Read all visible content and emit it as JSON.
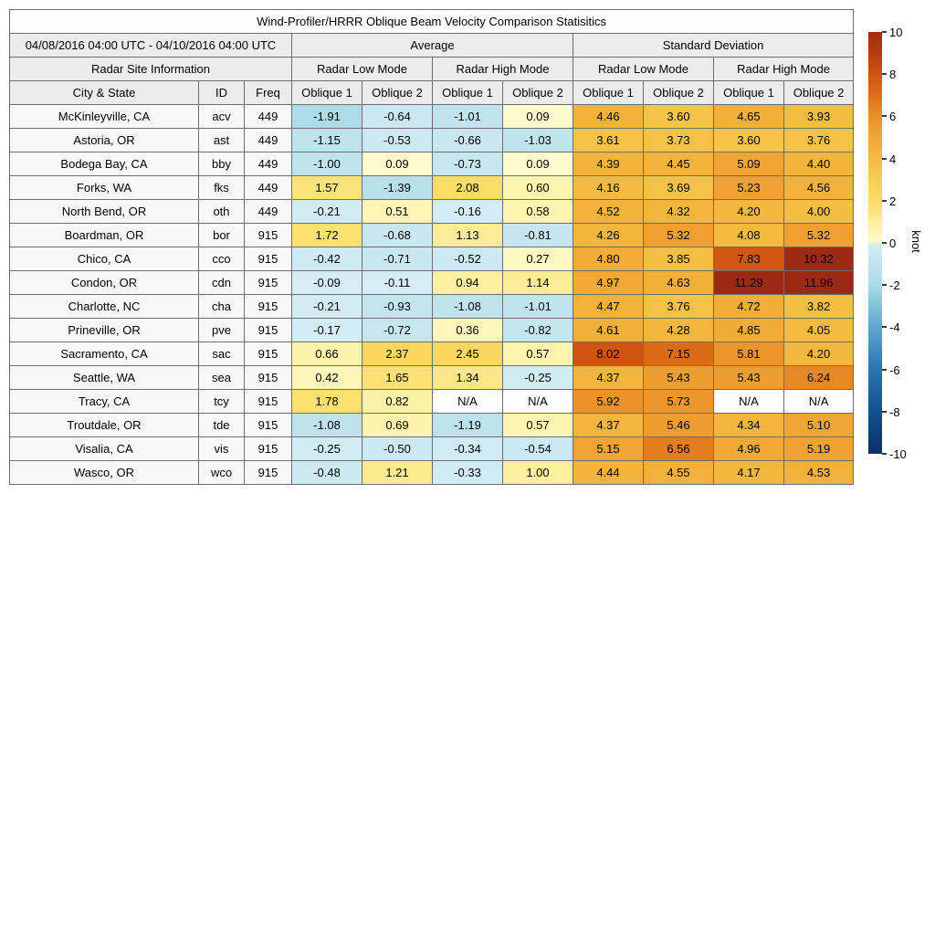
{
  "chart_data": {
    "type": "table",
    "title": "Wind-Profiler/HRRR Oblique Beam Velocity Comparison Statisitics",
    "date_range": "04/08/2016 04:00 UTC - 04/10/2016 04:00 UTC",
    "group_headers": {
      "site": "Radar Site Information",
      "average": "Average",
      "std": "Standard Deviation"
    },
    "mode_headers": [
      "Radar Low Mode",
      "Radar High Mode",
      "Radar Low Mode",
      "Radar High Mode"
    ],
    "base_columns": [
      "City & State",
      "ID",
      "Freq"
    ],
    "oblique_columns": [
      "Oblique 1",
      "Oblique 2",
      "Oblique 1",
      "Oblique 2",
      "Oblique 1",
      "Oblique 2",
      "Oblique 1",
      "Oblique 2"
    ],
    "rows": [
      {
        "city": "McKinleyville, CA",
        "id": "acv",
        "freq": "449",
        "values": [
          -1.91,
          -0.64,
          -1.01,
          0.09,
          4.46,
          3.6,
          4.65,
          3.93
        ]
      },
      {
        "city": "Astoria, OR",
        "id": "ast",
        "freq": "449",
        "values": [
          -1.15,
          -0.53,
          -0.66,
          -1.03,
          3.61,
          3.73,
          3.6,
          3.76
        ]
      },
      {
        "city": "Bodega Bay, CA",
        "id": "bby",
        "freq": "449",
        "values": [
          -1.0,
          0.09,
          -0.73,
          0.09,
          4.39,
          4.45,
          5.09,
          4.4
        ]
      },
      {
        "city": "Forks, WA",
        "id": "fks",
        "freq": "449",
        "values": [
          1.57,
          -1.39,
          2.08,
          0.6,
          4.16,
          3.69,
          5.23,
          4.56
        ]
      },
      {
        "city": "North Bend, OR",
        "id": "oth",
        "freq": "449",
        "values": [
          -0.21,
          0.51,
          -0.16,
          0.58,
          4.52,
          4.32,
          4.2,
          4.0
        ]
      },
      {
        "city": "Boardman, OR",
        "id": "bor",
        "freq": "915",
        "values": [
          1.72,
          -0.68,
          1.13,
          -0.81,
          4.26,
          5.32,
          4.08,
          5.32
        ]
      },
      {
        "city": "Chico, CA",
        "id": "cco",
        "freq": "915",
        "values": [
          -0.42,
          -0.71,
          -0.52,
          0.27,
          4.8,
          3.85,
          7.83,
          10.32
        ]
      },
      {
        "city": "Condon, OR",
        "id": "cdn",
        "freq": "915",
        "values": [
          -0.09,
          -0.11,
          0.94,
          1.14,
          4.97,
          4.63,
          11.29,
          11.96
        ]
      },
      {
        "city": "Charlotte, NC",
        "id": "cha",
        "freq": "915",
        "values": [
          -0.21,
          -0.93,
          -1.08,
          -1.01,
          4.47,
          3.76,
          4.72,
          3.82
        ]
      },
      {
        "city": "Prineville, OR",
        "id": "pve",
        "freq": "915",
        "values": [
          -0.17,
          -0.72,
          0.36,
          -0.82,
          4.61,
          4.28,
          4.85,
          4.05
        ]
      },
      {
        "city": "Sacramento, CA",
        "id": "sac",
        "freq": "915",
        "values": [
          0.66,
          2.37,
          2.45,
          0.57,
          8.02,
          7.15,
          5.81,
          4.2
        ]
      },
      {
        "city": "Seattle, WA",
        "id": "sea",
        "freq": "915",
        "values": [
          0.42,
          1.65,
          1.34,
          -0.25,
          4.37,
          5.43,
          5.43,
          6.24
        ]
      },
      {
        "city": "Tracy, CA",
        "id": "tcy",
        "freq": "915",
        "values": [
          1.78,
          0.82,
          "N/A",
          "N/A",
          5.92,
          5.73,
          "N/A",
          "N/A"
        ]
      },
      {
        "city": "Troutdale, OR",
        "id": "tde",
        "freq": "915",
        "values": [
          -1.08,
          0.69,
          -1.19,
          0.57,
          4.37,
          5.46,
          4.34,
          5.1
        ]
      },
      {
        "city": "Visalia, CA",
        "id": "vis",
        "freq": "915",
        "values": [
          -0.25,
          -0.5,
          -0.34,
          -0.54,
          5.15,
          6.56,
          4.96,
          5.19
        ]
      },
      {
        "city": "Wasco, OR",
        "id": "wco",
        "freq": "915",
        "values": [
          -0.48,
          1.21,
          -0.33,
          1.0,
          4.44,
          4.55,
          4.17,
          4.53
        ]
      }
    ],
    "colorbar": {
      "label": "knot",
      "min": -10,
      "max": 10,
      "ticks": [
        10,
        8,
        6,
        4,
        2,
        0,
        -2,
        -4,
        -6,
        -8,
        -10
      ],
      "colormap": [
        [
          -10,
          "#0b3064"
        ],
        [
          -8,
          "#14508e"
        ],
        [
          -6,
          "#2c74b2"
        ],
        [
          -4,
          "#60a6cb"
        ],
        [
          -2,
          "#a9dbe7"
        ],
        [
          -1,
          "#c0e4ee"
        ],
        [
          -0.01,
          "#d8eef6"
        ],
        [
          0.01,
          "#fefbd2"
        ],
        [
          0.5,
          "#fdf5b3"
        ],
        [
          1,
          "#fdefa0"
        ],
        [
          1.5,
          "#fce47c"
        ],
        [
          2,
          "#fbdd67"
        ],
        [
          3,
          "#f8cf54"
        ],
        [
          4,
          "#f4bc41"
        ],
        [
          5,
          "#f1a835"
        ],
        [
          6,
          "#ea9027"
        ],
        [
          7,
          "#de6f19"
        ],
        [
          8,
          "#d05310"
        ],
        [
          9,
          "#b83c12"
        ],
        [
          10,
          "#9e2b13"
        ],
        [
          12,
          "#9a2a16"
        ]
      ]
    }
  }
}
